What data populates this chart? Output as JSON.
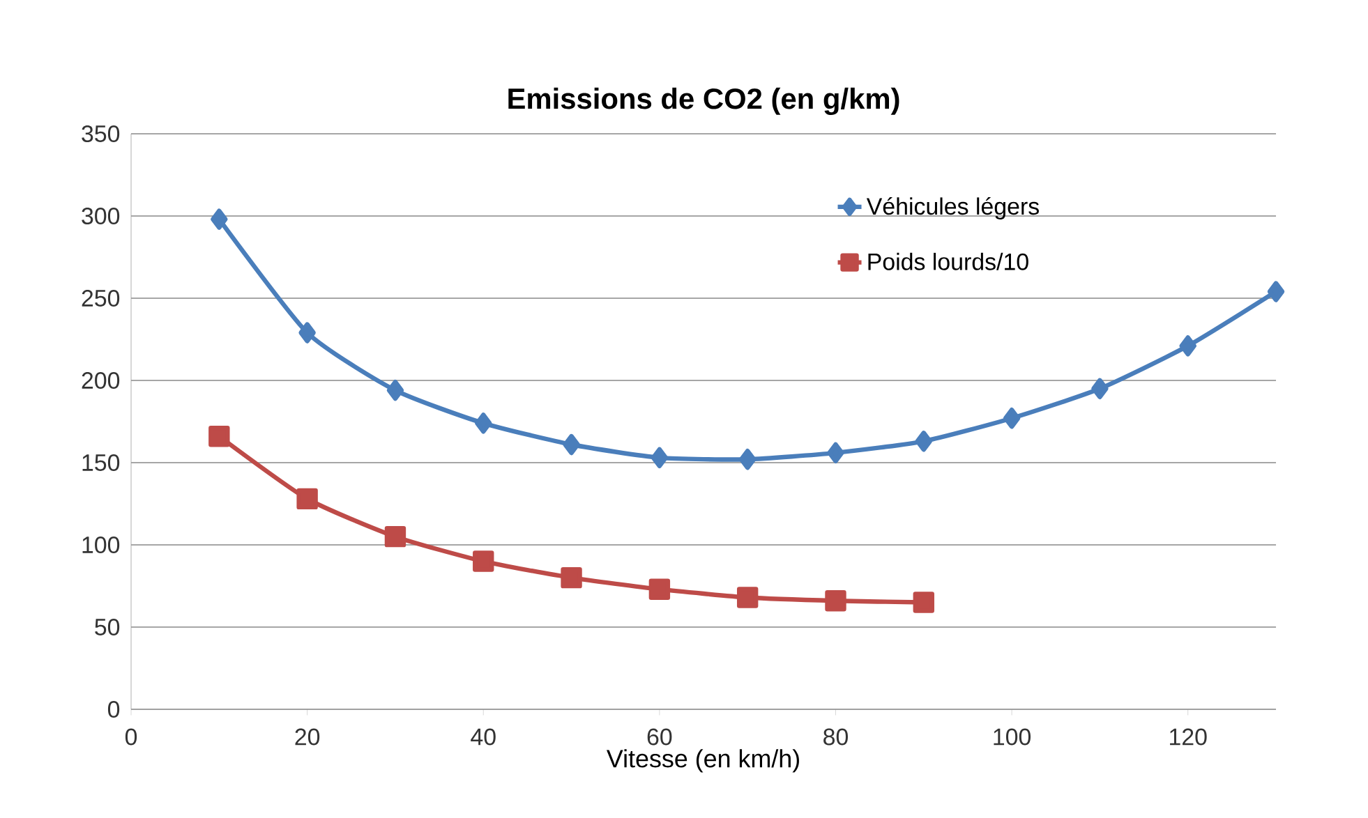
{
  "chart_data": {
    "type": "line",
    "title": "Emissions de CO2 (en g/km)",
    "xlabel": "Vitesse (en km/h)",
    "x": [
      10,
      20,
      30,
      40,
      50,
      60,
      70,
      80,
      90,
      100,
      110,
      120,
      130
    ],
    "series": [
      {
        "name": "Véhicules légers",
        "color": "#4a7ebb",
        "marker": "diamond",
        "values": [
          298,
          229,
          194,
          174,
          161,
          153,
          152,
          156,
          163,
          177,
          195,
          221,
          254
        ]
      },
      {
        "name": "Poids lourds/10",
        "color": "#be4b48",
        "marker": "square",
        "values": [
          166,
          128,
          105,
          90,
          80,
          73,
          68,
          66,
          65,
          null,
          null,
          null,
          null
        ]
      }
    ],
    "xlim": [
      0,
      130
    ],
    "xticks": [
      0,
      20,
      40,
      60,
      80,
      100,
      120
    ],
    "ylim": [
      0,
      350
    ],
    "yticks": [
      0,
      50,
      100,
      150,
      200,
      250,
      300,
      350
    ],
    "grid": "y",
    "legend": "top right",
    "line_style": "solid"
  }
}
